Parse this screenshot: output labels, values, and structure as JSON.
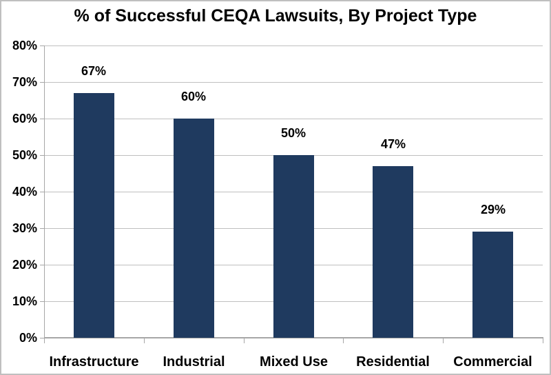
{
  "title": "% of Successful CEQA Lawsuits, By Project Type",
  "colors": {
    "bar": "#1f3a5f",
    "gridline": "#bfbfbf",
    "axis": "#a6a6a6",
    "text": "#000000",
    "frame_border": "#bfbfbf",
    "background": "#ffffff"
  },
  "chart_data": {
    "type": "bar",
    "title": "% of Successful CEQA Lawsuits, By Project Type",
    "categories": [
      "Infrastructure",
      "Industrial",
      "Mixed Use",
      "Residential",
      "Commercial"
    ],
    "values": [
      67,
      60,
      50,
      47,
      29
    ],
    "data_labels": [
      "67%",
      "60%",
      "50%",
      "47%",
      "29%"
    ],
    "xlabel": "",
    "ylabel": "",
    "ylim": [
      0,
      80
    ],
    "ytick_values": [
      0,
      10,
      20,
      30,
      40,
      50,
      60,
      70,
      80
    ],
    "ytick_labels": [
      "0%",
      "10%",
      "20%",
      "30%",
      "40%",
      "50%",
      "60%",
      "70%",
      "80%"
    ],
    "grid": "horizontal",
    "legend": "none",
    "bar_color": "#1f3a5f"
  }
}
